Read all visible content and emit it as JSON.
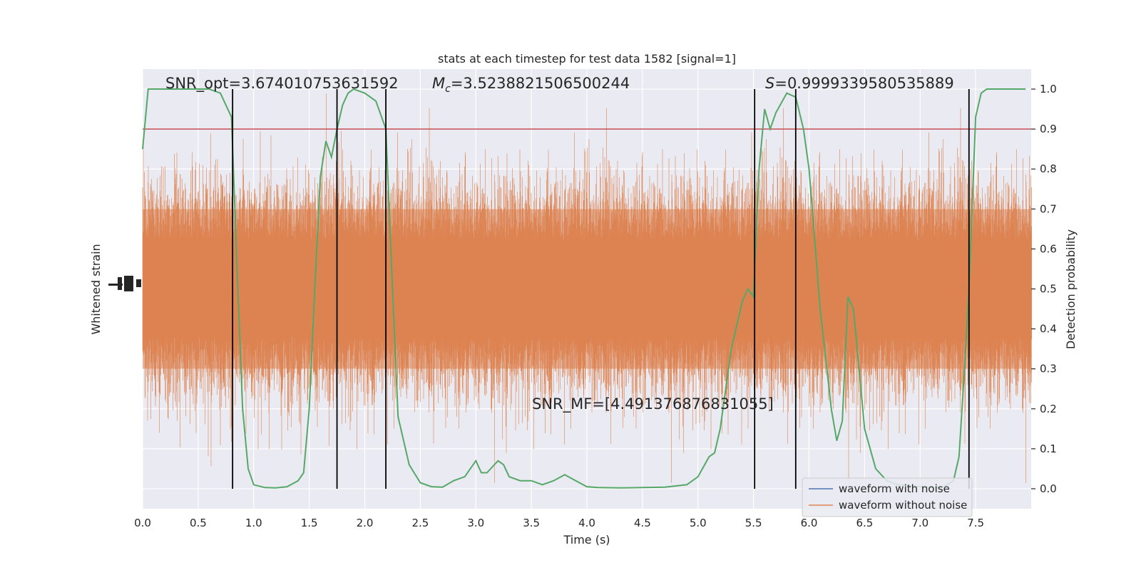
{
  "chart_data": {
    "type": "line",
    "title": "stats at each timestep for test data 1582 [signal=1]",
    "xlabel": "Time (s)",
    "ylabel_left": "Whitened strain",
    "ylabel_right": "Detection probability",
    "xlim": [
      0,
      8
    ],
    "ylim_right": [
      -0.05,
      1.05
    ],
    "x_ticks": [
      0.0,
      0.5,
      1.0,
      1.5,
      2.0,
      2.5,
      3.0,
      3.5,
      4.0,
      4.5,
      5.0,
      5.5,
      6.0,
      6.5,
      7.0,
      7.5
    ],
    "x_tick_labels": [
      "0.0",
      "0.5",
      "1.0",
      "1.5",
      "2.0",
      "2.5",
      "3.0",
      "3.5",
      "4.0",
      "4.5",
      "5.0",
      "5.5",
      "6.0",
      "6.5",
      "7.0",
      "7.5"
    ],
    "y_right_ticks": [
      0.0,
      0.1,
      0.2,
      0.3,
      0.4,
      0.5,
      0.6,
      0.7,
      0.8,
      0.9,
      1.0
    ],
    "y_right_tick_labels": [
      "0.0",
      "0.1",
      "0.2",
      "0.3",
      "0.4",
      "0.5",
      "0.6",
      "0.7",
      "0.8",
      "0.9",
      "1.0"
    ],
    "threshold": 0.9,
    "vertical_lines": [
      0.81,
      1.75,
      2.19,
      5.51,
      5.88,
      7.44
    ],
    "annotations": {
      "snr_opt": "SNR_opt=3.674010753631592",
      "mc_symbol": "M",
      "mc_sub": "c",
      "mc_value": "=3.5238821506500244",
      "s_symbol": "S",
      "s_value": "=0.9999339580535889",
      "snr_mf": "SNR_MF=[4.491376876831055]"
    },
    "series": [
      {
        "name": "waveform with noise",
        "color": "#4c72b0"
      },
      {
        "name": "waveform without noise",
        "color": "#dd8452"
      }
    ],
    "detection_probability": {
      "color": "#55a868",
      "points": [
        [
          0.0,
          0.85
        ],
        [
          0.05,
          1.0
        ],
        [
          0.1,
          1.0
        ],
        [
          0.2,
          1.0
        ],
        [
          0.3,
          1.0
        ],
        [
          0.4,
          1.0
        ],
        [
          0.5,
          1.0
        ],
        [
          0.6,
          1.0
        ],
        [
          0.7,
          0.99
        ],
        [
          0.8,
          0.93
        ],
        [
          0.85,
          0.55
        ],
        [
          0.9,
          0.2
        ],
        [
          0.95,
          0.05
        ],
        [
          1.0,
          0.01
        ],
        [
          1.1,
          0.003
        ],
        [
          1.2,
          0.002
        ],
        [
          1.3,
          0.005
        ],
        [
          1.4,
          0.02
        ],
        [
          1.45,
          0.04
        ],
        [
          1.5,
          0.2
        ],
        [
          1.55,
          0.5
        ],
        [
          1.6,
          0.78
        ],
        [
          1.65,
          0.87
        ],
        [
          1.7,
          0.83
        ],
        [
          1.75,
          0.9
        ],
        [
          1.8,
          0.96
        ],
        [
          1.85,
          0.99
        ],
        [
          1.9,
          1.0
        ],
        [
          2.0,
          0.99
        ],
        [
          2.1,
          0.97
        ],
        [
          2.19,
          0.9
        ],
        [
          2.25,
          0.5
        ],
        [
          2.3,
          0.18
        ],
        [
          2.4,
          0.06
        ],
        [
          2.5,
          0.015
        ],
        [
          2.6,
          0.005
        ],
        [
          2.7,
          0.004
        ],
        [
          2.8,
          0.02
        ],
        [
          2.9,
          0.03
        ],
        [
          3.0,
          0.07
        ],
        [
          3.05,
          0.04
        ],
        [
          3.1,
          0.04
        ],
        [
          3.2,
          0.07
        ],
        [
          3.25,
          0.06
        ],
        [
          3.3,
          0.03
        ],
        [
          3.4,
          0.02
        ],
        [
          3.5,
          0.02
        ],
        [
          3.6,
          0.01
        ],
        [
          3.7,
          0.02
        ],
        [
          3.8,
          0.035
        ],
        [
          3.9,
          0.02
        ],
        [
          4.0,
          0.005
        ],
        [
          4.1,
          0.003
        ],
        [
          4.3,
          0.002
        ],
        [
          4.5,
          0.003
        ],
        [
          4.7,
          0.004
        ],
        [
          4.9,
          0.01
        ],
        [
          5.0,
          0.03
        ],
        [
          5.1,
          0.08
        ],
        [
          5.15,
          0.09
        ],
        [
          5.2,
          0.15
        ],
        [
          5.3,
          0.35
        ],
        [
          5.4,
          0.47
        ],
        [
          5.45,
          0.5
        ],
        [
          5.5,
          0.48
        ],
        [
          5.55,
          0.8
        ],
        [
          5.6,
          0.95
        ],
        [
          5.65,
          0.9
        ],
        [
          5.7,
          0.94
        ],
        [
          5.8,
          0.99
        ],
        [
          5.88,
          0.98
        ],
        [
          5.95,
          0.9
        ],
        [
          6.0,
          0.8
        ],
        [
          6.1,
          0.45
        ],
        [
          6.2,
          0.2
        ],
        [
          6.25,
          0.12
        ],
        [
          6.3,
          0.17
        ],
        [
          6.35,
          0.48
        ],
        [
          6.4,
          0.45
        ],
        [
          6.45,
          0.3
        ],
        [
          6.5,
          0.15
        ],
        [
          6.6,
          0.05
        ],
        [
          6.7,
          0.02
        ],
        [
          6.8,
          0.01
        ],
        [
          7.0,
          0.005
        ],
        [
          7.2,
          0.003
        ],
        [
          7.3,
          0.02
        ],
        [
          7.35,
          0.08
        ],
        [
          7.4,
          0.3
        ],
        [
          7.44,
          0.5
        ],
        [
          7.5,
          0.93
        ],
        [
          7.55,
          0.99
        ],
        [
          7.6,
          1.0
        ],
        [
          7.7,
          1.0
        ],
        [
          7.95,
          1.0
        ]
      ]
    },
    "legend_placement": "lower right",
    "grid": true
  }
}
